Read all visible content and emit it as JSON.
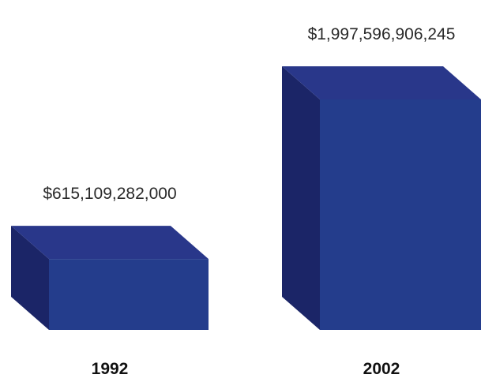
{
  "chart_data": {
    "type": "bar",
    "style": "3d-box",
    "categories": [
      "1992",
      "2002"
    ],
    "values": [
      615109282000,
      1997596906245
    ],
    "value_labels": [
      "$615,109,282,000",
      "$1,997,596,906,245"
    ],
    "title": "",
    "xlabel": "",
    "ylabel": "",
    "grid": false,
    "colors": {
      "front": "#243d8c",
      "side": "#1b2567",
      "top": "#29378a"
    }
  }
}
